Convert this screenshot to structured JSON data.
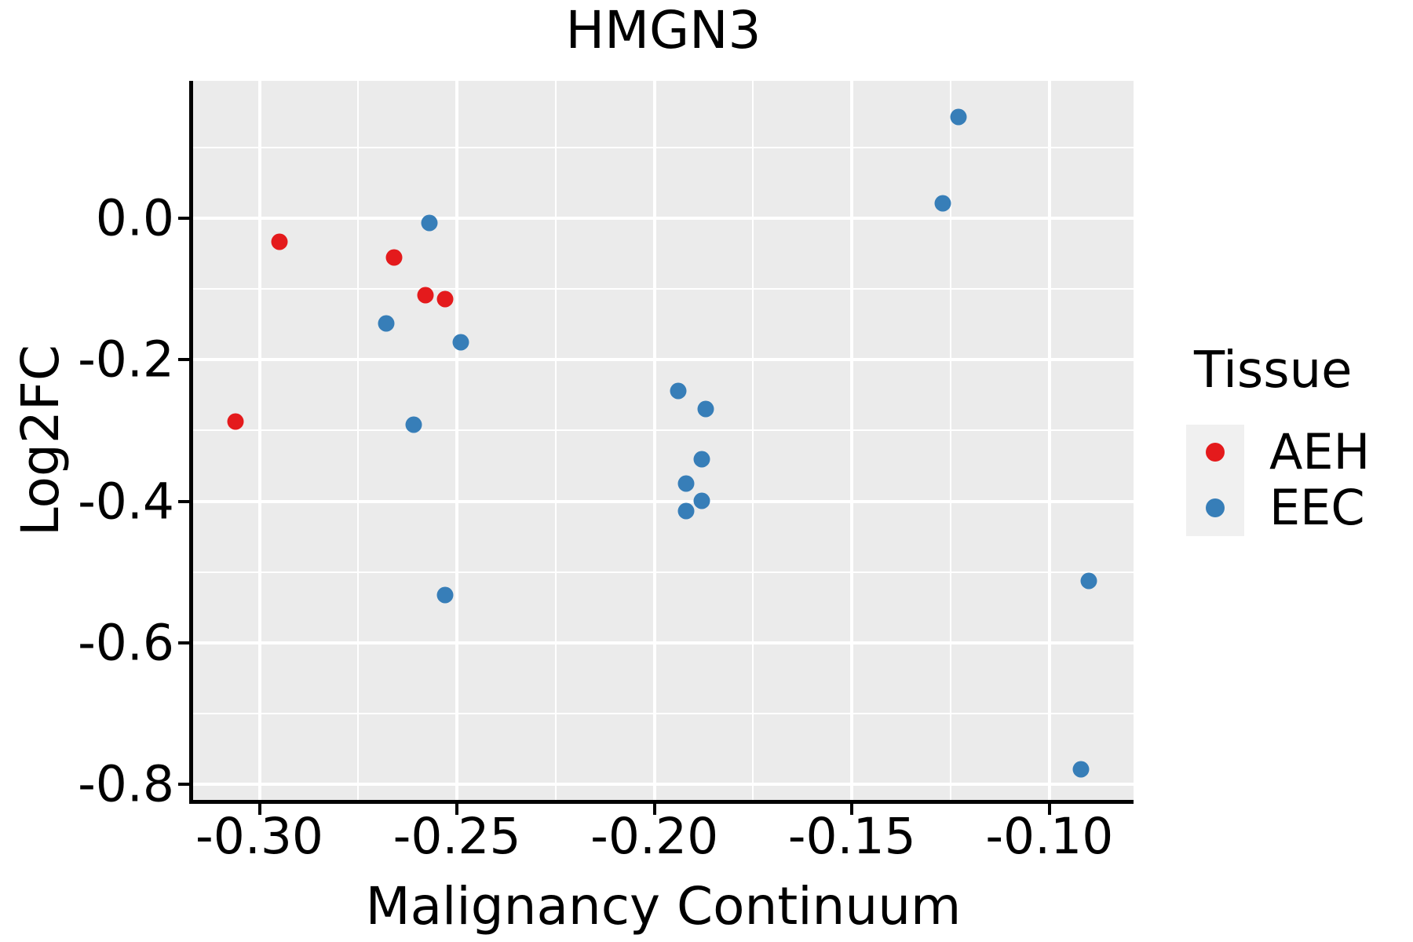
{
  "title": "HMGN3",
  "colors": {
    "panel_background": "#EBEBEB",
    "grid": "#FFFFFF",
    "axis": "#000000",
    "text": "#000000",
    "legend_key_background": "#F0F0F0",
    "aeh": "#E41A1C",
    "eec": "#377EB8"
  },
  "chart_data": {
    "type": "scatter",
    "title": "HMGN3",
    "xlabel": "Malignancy Continuum",
    "ylabel": "Log2FC",
    "xlim": [
      -0.3168,
      -0.0787
    ],
    "ylim": [
      -0.8222,
      0.1944
    ],
    "grid": true,
    "panel_style": "gray-background-white-grid",
    "legend_position": "right",
    "legend_title": "Tissue",
    "x_ticks": {
      "values": [
        -0.3,
        -0.25,
        -0.2,
        -0.15,
        -0.1
      ],
      "labels": [
        "-0.30",
        "-0.25",
        "-0.20",
        "-0.15",
        "-0.10"
      ]
    },
    "y_ticks": {
      "values": [
        0.0,
        -0.2,
        -0.4,
        -0.6,
        -0.8
      ],
      "labels": [
        "0.0",
        "-0.2",
        "-0.4",
        "-0.6",
        "-0.8"
      ]
    },
    "x_minor_ticks": [
      -0.275,
      -0.225,
      -0.175,
      -0.125
    ],
    "y_minor_ticks": [
      0.1,
      -0.1,
      -0.3,
      -0.5,
      -0.7
    ],
    "series": [
      {
        "name": "AEH",
        "color": "#E41A1C",
        "points": [
          [
            -0.295,
            -0.033
          ],
          [
            -0.266,
            -0.055
          ],
          [
            -0.258,
            -0.109
          ],
          [
            -0.253,
            -0.114
          ],
          [
            -0.306,
            -0.287
          ]
        ]
      },
      {
        "name": "EEC",
        "color": "#377EB8",
        "points": [
          [
            -0.257,
            -0.006
          ],
          [
            -0.268,
            -0.149
          ],
          [
            -0.249,
            -0.175
          ],
          [
            -0.261,
            -0.292
          ],
          [
            -0.194,
            -0.244
          ],
          [
            -0.187,
            -0.27
          ],
          [
            -0.188,
            -0.34
          ],
          [
            -0.192,
            -0.375
          ],
          [
            -0.188,
            -0.399
          ],
          [
            -0.192,
            -0.414
          ],
          [
            -0.253,
            -0.533
          ],
          [
            -0.123,
            0.143
          ],
          [
            -0.127,
            0.021
          ],
          [
            -0.09,
            -0.513
          ],
          [
            -0.092,
            -0.779
          ]
        ]
      }
    ]
  },
  "legend": {
    "title": "Tissue",
    "items": [
      {
        "label": "AEH",
        "color": "#E41A1C"
      },
      {
        "label": "EEC",
        "color": "#377EB8"
      }
    ]
  }
}
